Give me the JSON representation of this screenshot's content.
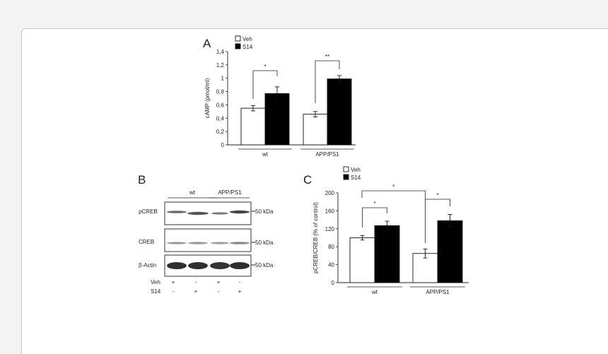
{
  "figure": {
    "panels": {
      "a": {
        "letter": "A"
      },
      "b": {
        "letter": "B"
      },
      "c": {
        "letter": "C"
      }
    }
  },
  "chart_data": [
    {
      "panel": "A",
      "type": "bar",
      "ylabel": "cAMP (pmol/ml)",
      "ylim": [
        0,
        1.4
      ],
      "yticks": [
        "0",
        "0,2",
        "0,4",
        "0,6",
        "0,8",
        "1",
        "1,2",
        "1,4"
      ],
      "categories": [
        "wt",
        "APP/PS1"
      ],
      "series": [
        {
          "name": "Veh",
          "color": "#ffffff",
          "values": [
            0.55,
            0.46
          ],
          "errors": [
            0.04,
            0.04
          ]
        },
        {
          "name": "S14",
          "color": "#000000",
          "values": [
            0.77,
            0.99
          ],
          "errors": [
            0.1,
            0.05
          ]
        }
      ],
      "significance": [
        "*",
        "**"
      ],
      "legend": "top-left"
    },
    {
      "panel": "C",
      "type": "bar",
      "ylabel": "pCREB/CREB (% of control)",
      "ylim": [
        0,
        200
      ],
      "yticks": [
        "0",
        "40",
        "80",
        "120",
        "160",
        "200"
      ],
      "categories": [
        "wt",
        "APP/PS1"
      ],
      "series": [
        {
          "name": "Veh",
          "color": "#ffffff",
          "values": [
            100,
            65
          ],
          "errors": [
            5,
            10
          ]
        },
        {
          "name": "S14",
          "color": "#000000",
          "values": [
            127,
            138
          ],
          "errors": [
            10,
            14
          ]
        }
      ],
      "significance": [
        "*",
        "*",
        "*"
      ],
      "legend": "top-left"
    }
  ],
  "blot": {
    "groups": [
      "wt",
      "APP/PS1"
    ],
    "rows": [
      {
        "label": "pCREB",
        "marker": "50 kDa"
      },
      {
        "label": "CREB",
        "marker": "50 kDa"
      },
      {
        "label": "β-Actin",
        "marker": "50 kDa"
      }
    ],
    "treatments": [
      {
        "label": "Veh",
        "signs": [
          "+",
          "-",
          "+",
          "-"
        ]
      },
      {
        "label": "S14",
        "signs": [
          "-",
          "+",
          "-",
          "+"
        ]
      }
    ]
  }
}
